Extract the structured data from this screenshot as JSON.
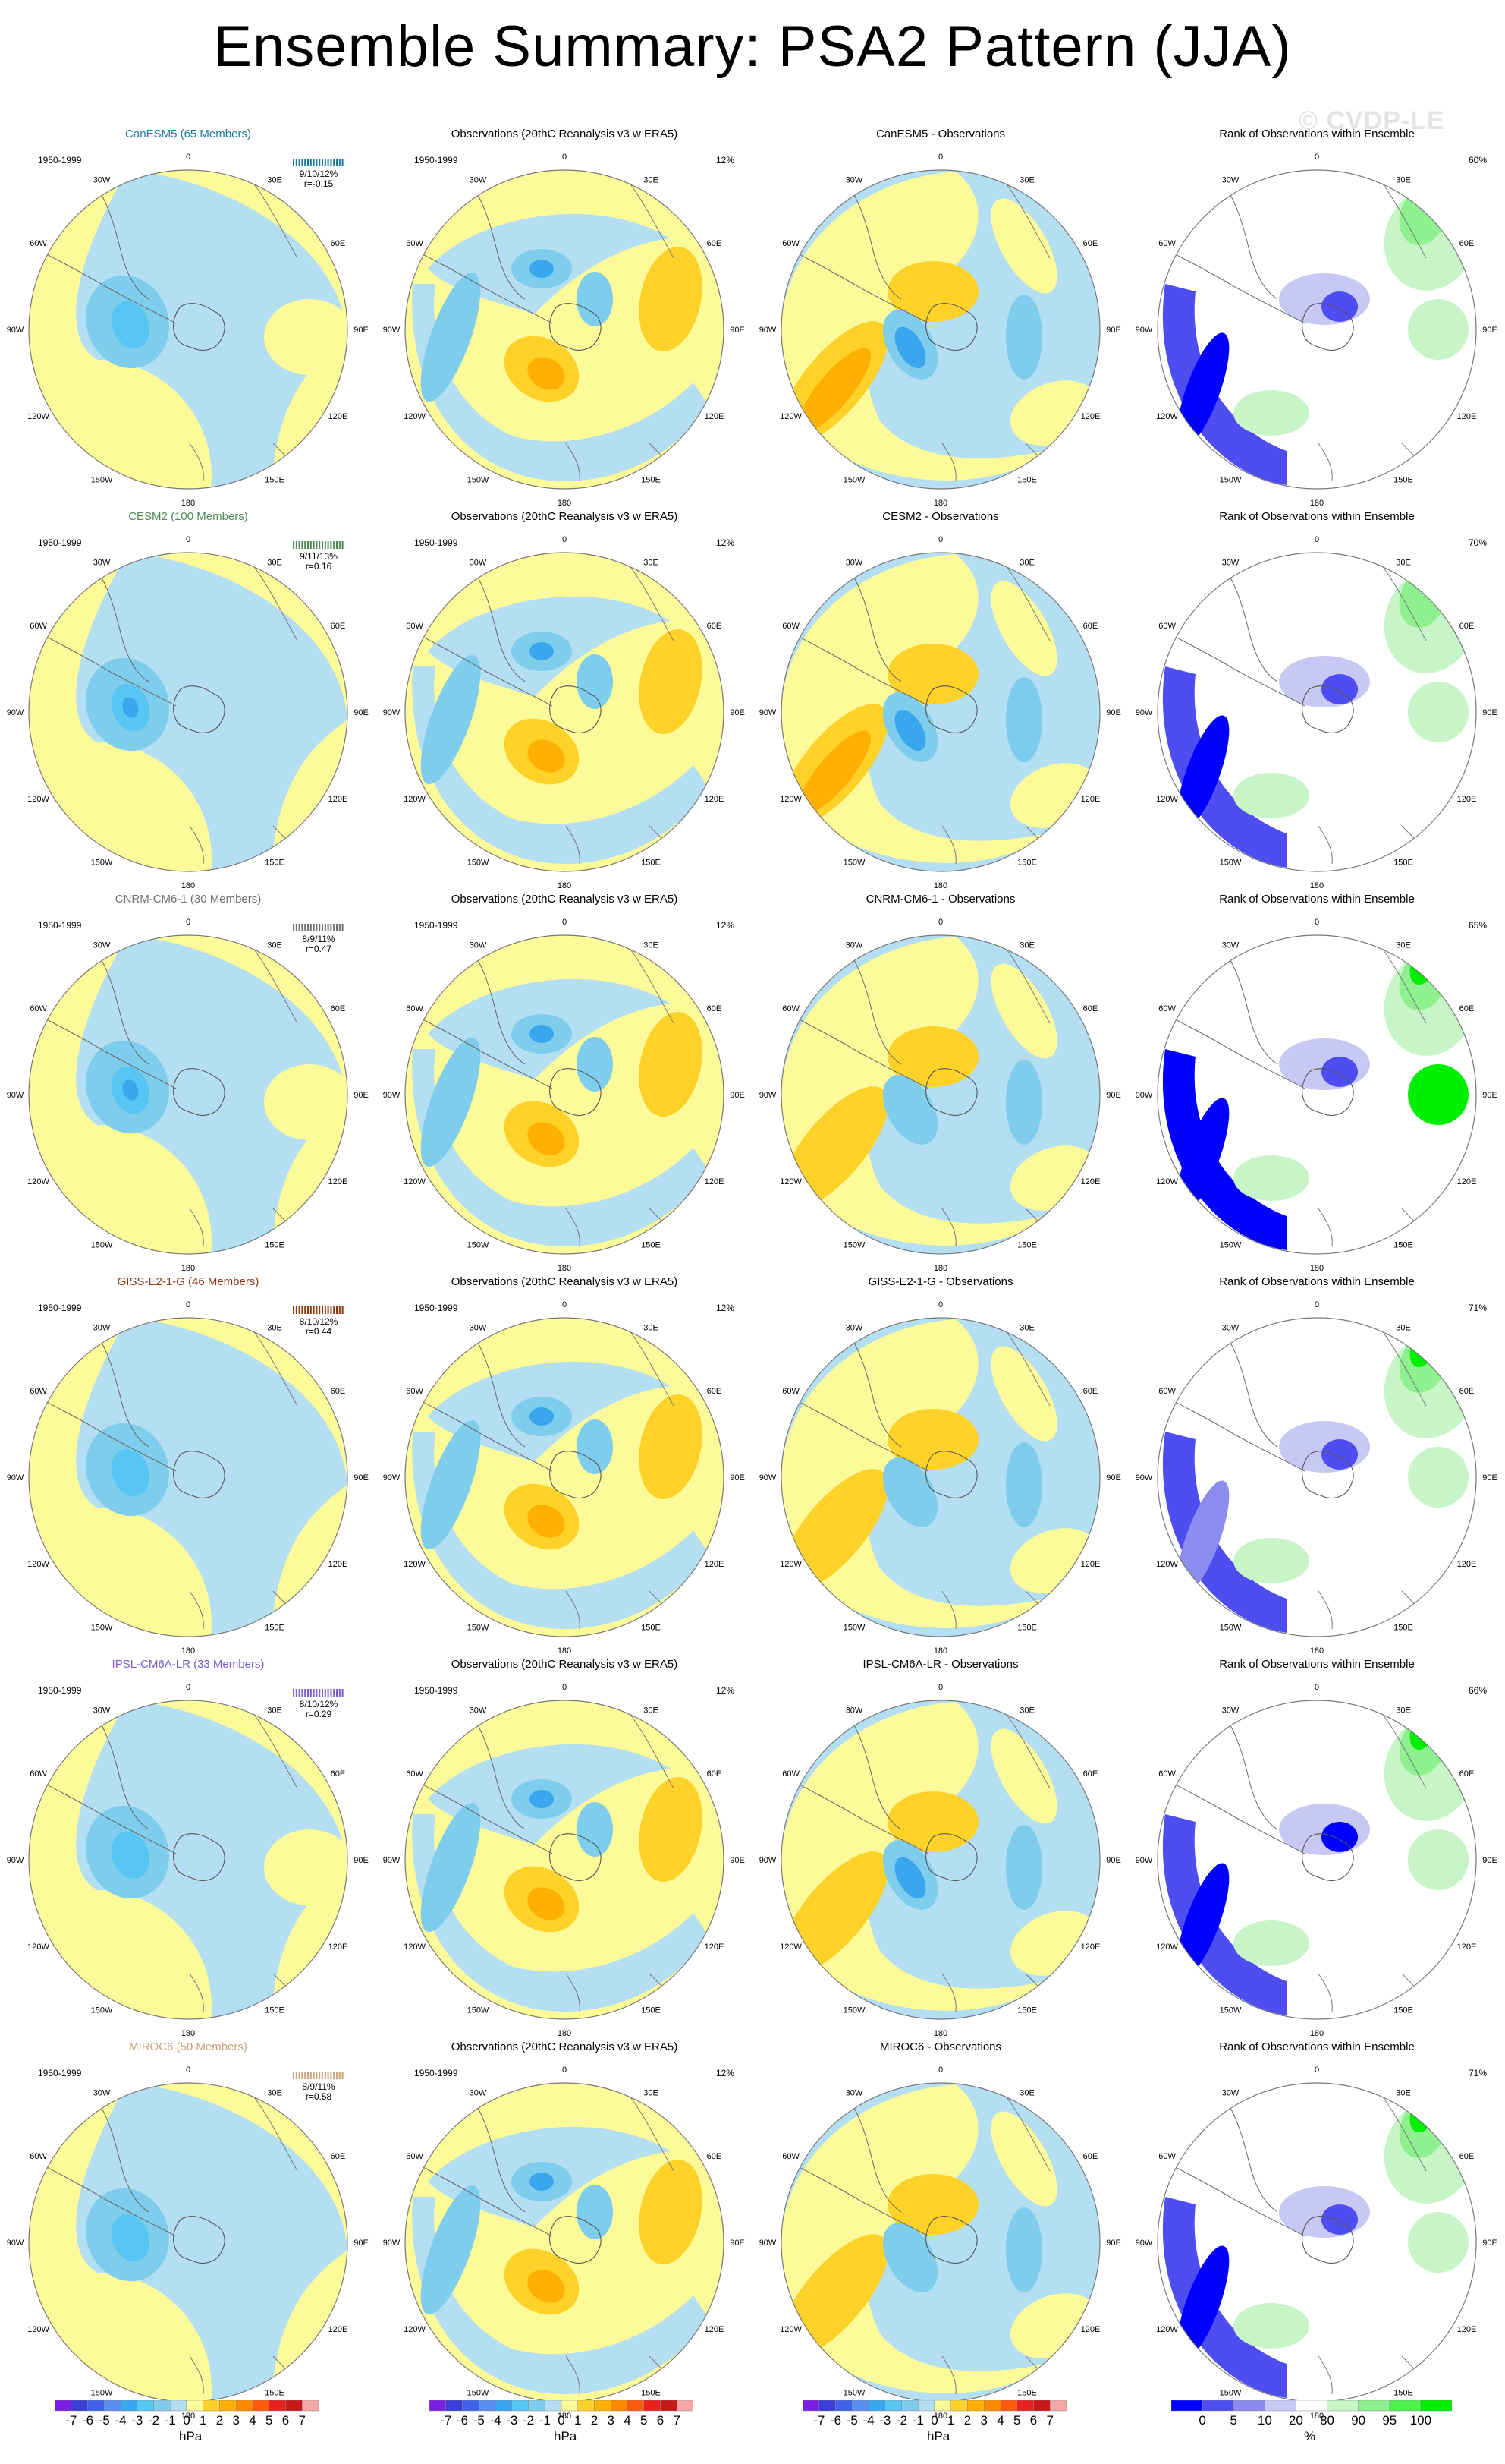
{
  "title": "Ensemble Summary: PSA2 Pattern (JJA)",
  "watermark": "© CVDP-LE",
  "obs_title": "Observations (20thC Reanalysis v3 w ERA5)",
  "rank_title": "Rank of Observations within Ensemble",
  "period": "1950-1999",
  "obs_pct": "12%",
  "lon_labels": [
    "0",
    "30E",
    "60E",
    "90E",
    "120E",
    "150E",
    "180",
    "150W",
    "120W",
    "90W",
    "60W",
    "30W"
  ],
  "rows": [
    {
      "model": "CanESM5 (65 Members)",
      "color": "#1a7a9a",
      "stats_pct": "9/10/12%",
      "stats_r": "r=-0.15",
      "diff_title": "CanESM5 - Observations",
      "rank_pct": "60%"
    },
    {
      "model": "CESM2 (100 Members)",
      "color": "#4f8a55",
      "stats_pct": "9/11/13%",
      "stats_r": "r=0.16",
      "diff_title": "CESM2 - Observations",
      "rank_pct": "70%"
    },
    {
      "model": "CNRM-CM6-1 (30 Members)",
      "color": "#707070",
      "stats_pct": "8/9/11%",
      "stats_r": "r=0.47",
      "diff_title": "CNRM-CM6-1 - Observations",
      "rank_pct": "65%"
    },
    {
      "model": "GISS-E2-1-G (46 Members)",
      "color": "#8b3a10",
      "stats_pct": "8/10/12%",
      "stats_r": "r=0.44",
      "diff_title": "GISS-E2-1-G - Observations",
      "rank_pct": "71%"
    },
    {
      "model": "IPSL-CM6A-LR (33 Members)",
      "color": "#7b5cc9",
      "stats_pct": "8/10/12%",
      "stats_r": "r=0.29",
      "diff_title": "IPSL-CM6A-LR - Observations",
      "rank_pct": "66%"
    },
    {
      "model": "MIROC6 (50 Members)",
      "color": "#c9a27a",
      "stats_pct": "8/9/11%",
      "stats_r": "r=0.58",
      "diff_title": "MIROC6 - Observations",
      "rank_pct": "71%"
    }
  ],
  "colorbar_hpa": {
    "labels": [
      "-7",
      "-6",
      "-5",
      "-4",
      "-3",
      "-2",
      "-1",
      "0",
      "1",
      "2",
      "3",
      "4",
      "5",
      "6",
      "7"
    ],
    "colors": [
      "#7a1fe0",
      "#3c3cd8",
      "#3f62e6",
      "#5a8ef0",
      "#3aa6ee",
      "#58c6f4",
      "#7fcdec",
      "#b4def2",
      "#fdfa9a",
      "#ffd22a",
      "#ffb000",
      "#ff8a00",
      "#ff5a10",
      "#e82020",
      "#c81818",
      "#f6a8a8"
    ],
    "unit": "hPa"
  },
  "colorbar_rank": {
    "labels": [
      "0",
      "5",
      "10",
      "20",
      "80",
      "90",
      "95",
      "100"
    ],
    "colors": [
      "#0000ff",
      "#4d4df2",
      "#8c8cee",
      "#c8c8f5",
      "#ffffff",
      "#c8f5c8",
      "#8ef08e",
      "#4df04d",
      "#00ee00"
    ],
    "unit": "%"
  },
  "palette": {
    "blue_light": "#b4def2",
    "blue_mid": "#7fcdec",
    "blue_dark": "#58c6f4",
    "blue_deep": "#3aa6ee",
    "yellow": "#fdfa9a",
    "yellow_dark": "#ffd22a",
    "orange": "#ffb000",
    "rank_blue": "#0000ff",
    "rank_green": "#00ee00"
  }
}
